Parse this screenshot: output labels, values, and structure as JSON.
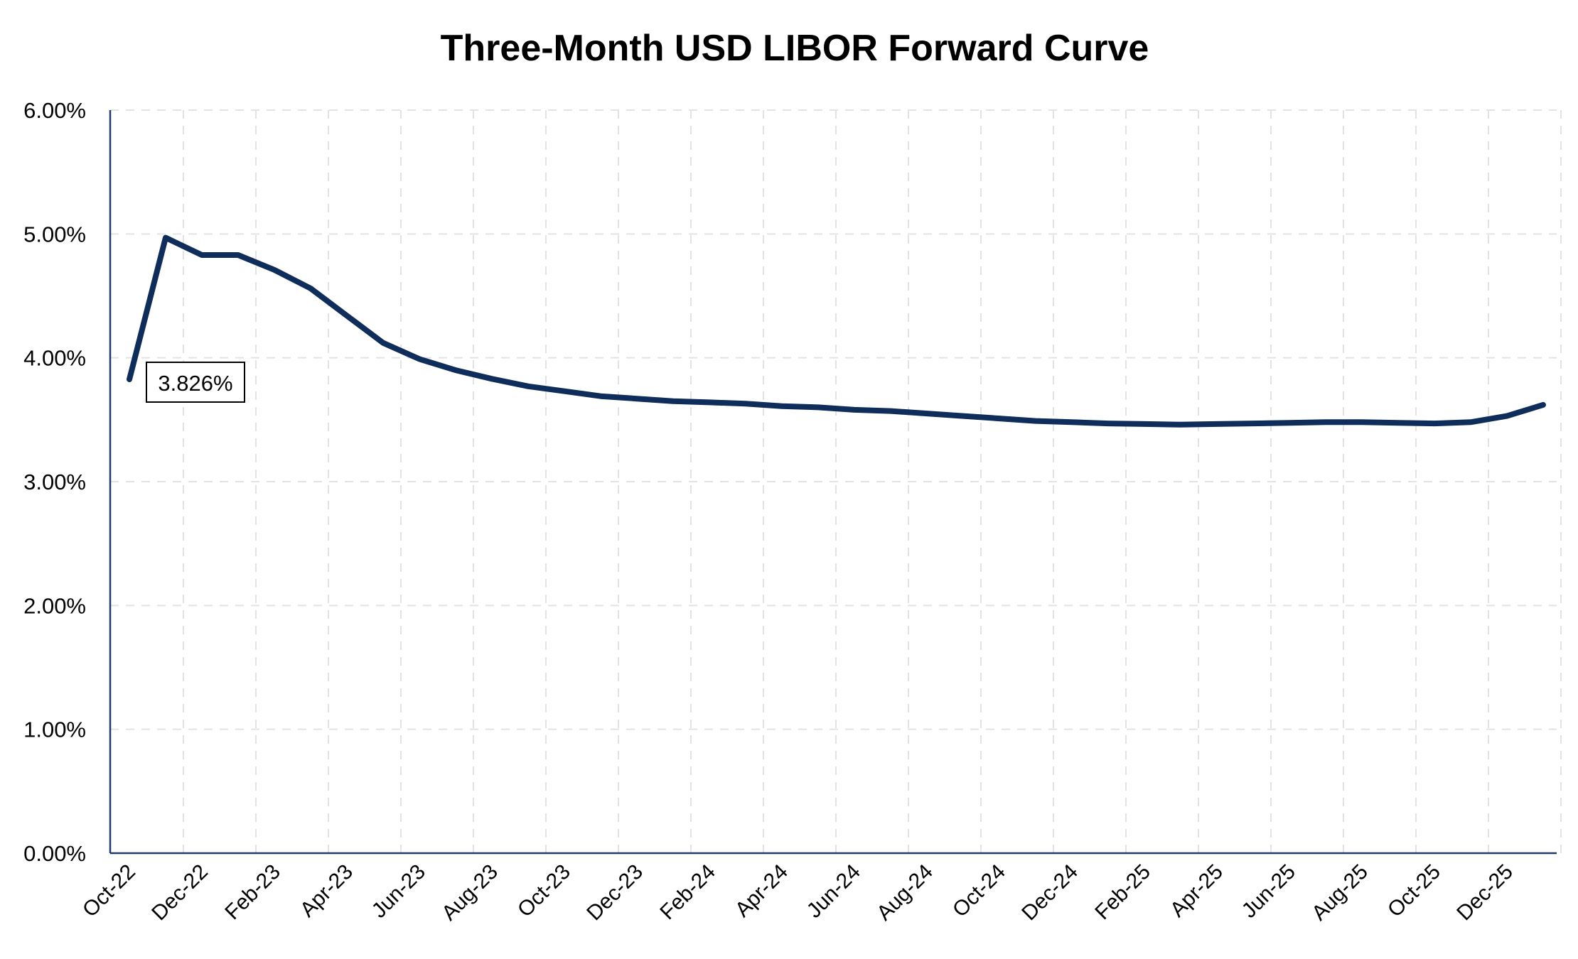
{
  "chart_data": {
    "type": "line",
    "title": "Three-Month USD LIBOR Forward Curve",
    "xlabel": "",
    "ylabel": "",
    "ylim": [
      0,
      6
    ],
    "y_unit": "%",
    "y_tick_labels": [
      "0.00%",
      "1.00%",
      "2.00%",
      "3.00%",
      "4.00%",
      "5.00%",
      "6.00%"
    ],
    "x_tick_labels": [
      "Oct-22",
      "Dec-22",
      "Feb-23",
      "Apr-23",
      "Jun-23",
      "Aug-23",
      "Oct-23",
      "Dec-23",
      "Feb-24",
      "Apr-24",
      "Jun-24",
      "Aug-24",
      "Oct-24",
      "Dec-24",
      "Feb-25",
      "Apr-25",
      "Jun-25",
      "Aug-25",
      "Oct-25",
      "Dec-25"
    ],
    "grid": true,
    "line_color": "#0f2d5a",
    "series": [
      {
        "x": [
          "Oct-22",
          "Nov-22",
          "Dec-22",
          "Jan-23",
          "Feb-23",
          "Mar-23",
          "Apr-23",
          "May-23",
          "Jun-23",
          "Jul-23",
          "Aug-23",
          "Sep-23",
          "Oct-23",
          "Nov-23",
          "Dec-23",
          "Jan-24",
          "Feb-24",
          "Mar-24",
          "Apr-24",
          "May-24",
          "Jun-24",
          "Jul-24",
          "Aug-24",
          "Sep-24",
          "Oct-24",
          "Nov-24",
          "Dec-24",
          "Jan-25",
          "Feb-25",
          "Mar-25",
          "Apr-25",
          "May-25",
          "Jun-25",
          "Jul-25",
          "Aug-25",
          "Sep-25",
          "Oct-25",
          "Nov-25",
          "Dec-25",
          "Jan-26"
        ],
        "values": [
          3.826,
          4.97,
          4.83,
          4.83,
          4.71,
          4.56,
          4.34,
          4.12,
          3.99,
          3.9,
          3.83,
          3.77,
          3.73,
          3.69,
          3.67,
          3.65,
          3.64,
          3.63,
          3.61,
          3.6,
          3.58,
          3.57,
          3.55,
          3.53,
          3.51,
          3.49,
          3.48,
          3.47,
          3.465,
          3.46,
          3.465,
          3.47,
          3.475,
          3.48,
          3.48,
          3.475,
          3.47,
          3.48,
          3.53,
          3.62
        ]
      }
    ],
    "annotations": [
      {
        "text": "3.826%",
        "x": "Oct-22",
        "y": 3.826
      }
    ]
  }
}
